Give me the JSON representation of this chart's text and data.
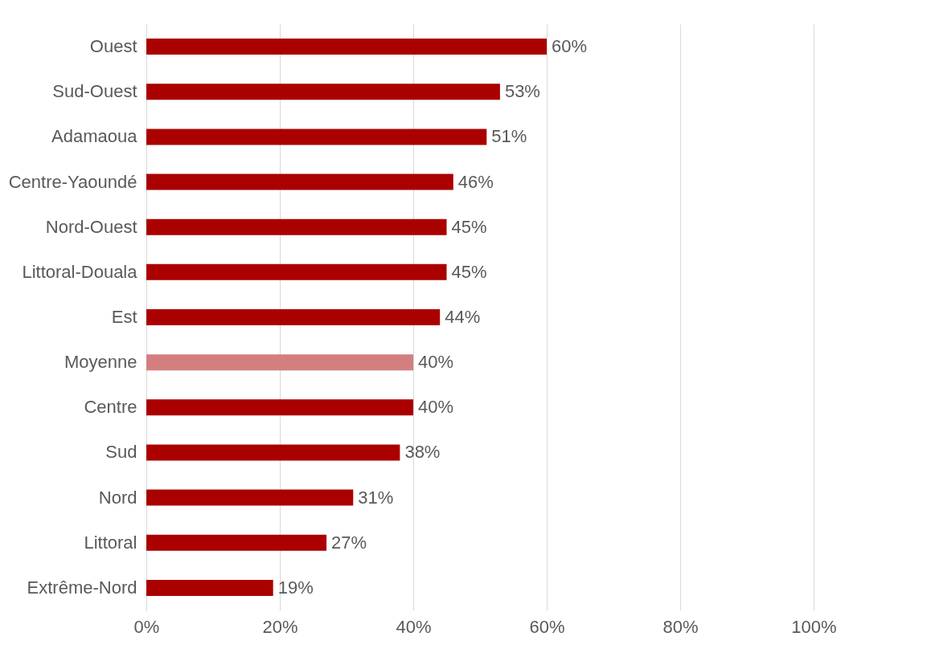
{
  "chart_data": {
    "type": "bar",
    "orientation": "horizontal",
    "categories": [
      "Ouest",
      "Sud-Ouest",
      "Adamaoua",
      "Centre-Yaoundé",
      "Nord-Ouest",
      "Littoral-Douala",
      "Est",
      "Moyenne",
      "Centre",
      "Sud",
      "Nord",
      "Littoral",
      "Extrême-Nord"
    ],
    "values": [
      60,
      53,
      51,
      46,
      45,
      45,
      44,
      40,
      40,
      38,
      31,
      27,
      19
    ],
    "value_labels": [
      "60%",
      "53%",
      "51%",
      "46%",
      "45%",
      "45%",
      "44%",
      "40%",
      "40%",
      "38%",
      "31%",
      "27%",
      "19%"
    ],
    "colors": [
      "#aa0000",
      "#aa0000",
      "#aa0000",
      "#aa0000",
      "#aa0000",
      "#aa0000",
      "#aa0000",
      "#d47f7f",
      "#aa0000",
      "#aa0000",
      "#aa0000",
      "#aa0000",
      "#aa0000"
    ],
    "xlim": [
      0,
      100
    ],
    "xticks": [
      {
        "value": 0,
        "label": "0%"
      },
      {
        "value": 20,
        "label": "20%"
      },
      {
        "value": 40,
        "label": "40%"
      },
      {
        "value": 60,
        "label": "60%"
      },
      {
        "value": 80,
        "label": "80%"
      },
      {
        "value": 100,
        "label": "100%"
      }
    ],
    "grid": "x"
  }
}
